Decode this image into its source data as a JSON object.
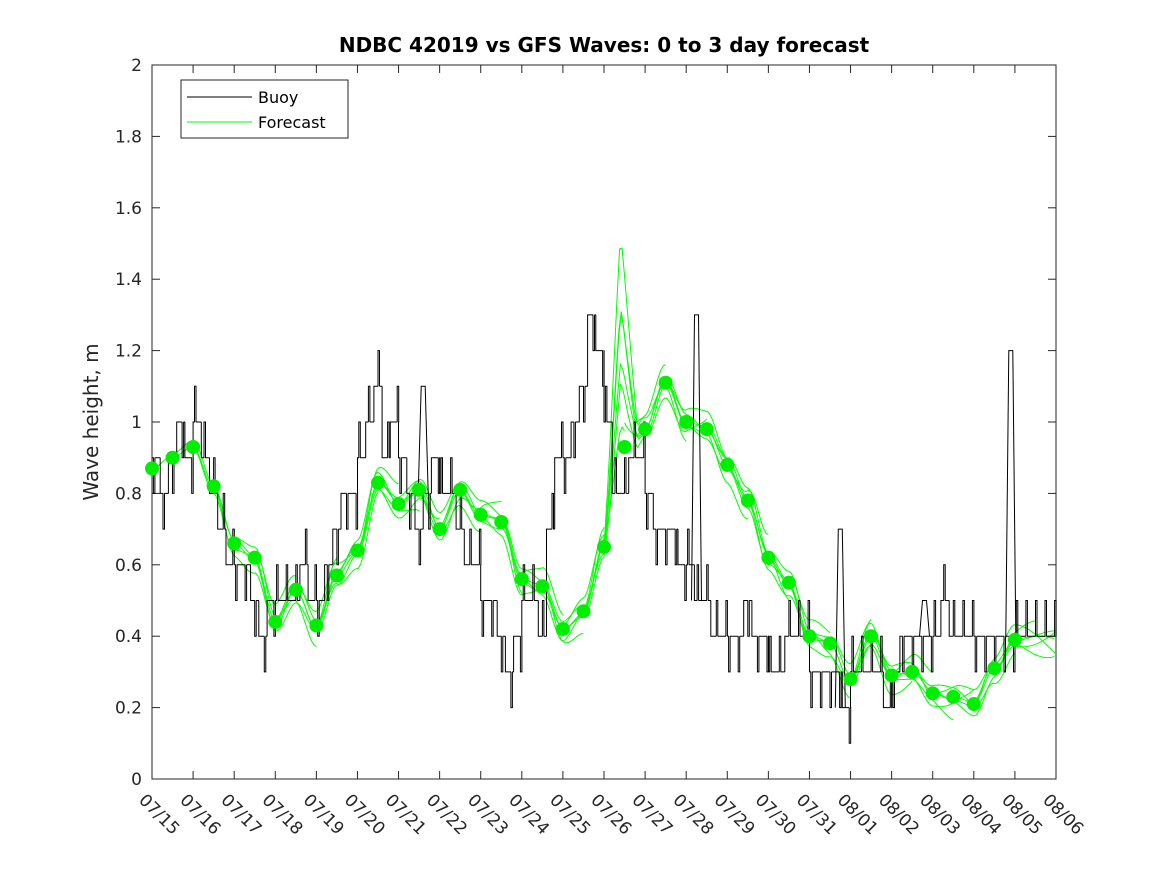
{
  "chart_data": {
    "type": "line",
    "title": "NDBC 42019 vs GFS Waves: 0 to 3 day forecast",
    "xlabel": "",
    "ylabel": "Wave height, m",
    "ylim": [
      0,
      2
    ],
    "yticks": [
      "0",
      "0.2",
      "0.4",
      "0.6",
      "0.8",
      "1",
      "1.2",
      "1.4",
      "1.6",
      "1.8",
      "2"
    ],
    "xlim": [
      "07/15",
      "08/06"
    ],
    "xticks": [
      "07/15",
      "07/16",
      "07/17",
      "07/18",
      "07/19",
      "07/20",
      "07/21",
      "07/22",
      "07/23",
      "07/24",
      "07/25",
      "07/26",
      "07/27",
      "07/28",
      "07/29",
      "07/30",
      "07/31",
      "08/01",
      "08/02",
      "08/03",
      "08/04",
      "08/05",
      "08/06"
    ],
    "grid": false,
    "legend": {
      "position": "top-left",
      "entries": [
        "Buoy",
        "Forecast"
      ]
    },
    "colors": {
      "buoy": "#000000",
      "forecast": "#00ff00",
      "dots": "#00ee00"
    },
    "buoy": {
      "name": "Buoy",
      "x_days": [
        0,
        0.2,
        0.4,
        0.6,
        0.8,
        1.0,
        1.2,
        1.4,
        1.6,
        1.8,
        2.0,
        2.2,
        2.4,
        2.6,
        2.8,
        3.0,
        3.2,
        3.4,
        3.6,
        3.8,
        4.0,
        4.2,
        4.4,
        4.6,
        4.8,
        5.0,
        5.2,
        5.4,
        5.6,
        5.8,
        6.0,
        6.2,
        6.4,
        6.6,
        6.8,
        7.0,
        7.2,
        7.4,
        7.6,
        7.8,
        8.0,
        8.2,
        8.4,
        8.6,
        8.8,
        9.0,
        9.2,
        9.4,
        9.6,
        9.8,
        10.0,
        10.2,
        10.4,
        10.6,
        10.8,
        11.0,
        11.2,
        11.4,
        11.6,
        11.8,
        12.0,
        12.2,
        12.4,
        12.6,
        12.8,
        13.0,
        13.2,
        13.4,
        13.6,
        13.8,
        14.0,
        14.2,
        14.4,
        14.6,
        14.8,
        15.0,
        15.2,
        15.4,
        15.6,
        15.8,
        16.0,
        16.2,
        16.4,
        16.6,
        16.8,
        17.0,
        17.2,
        17.4,
        17.6,
        17.8,
        18.0,
        18.2,
        18.4,
        18.6,
        18.8,
        19.0,
        19.2,
        19.4,
        19.6,
        19.8,
        20.0,
        20.2,
        20.4,
        20.6,
        20.8,
        21.0,
        21.2,
        21.4,
        21.6,
        21.8,
        22.0
      ],
      "values": [
        0.9,
        0.8,
        0.9,
        1.0,
        0.9,
        1.0,
        0.9,
        0.8,
        0.7,
        0.6,
        0.6,
        0.6,
        0.5,
        0.4,
        0.5,
        0.5,
        0.5,
        0.5,
        0.6,
        0.5,
        0.5,
        0.6,
        0.7,
        0.8,
        0.8,
        0.9,
        1.0,
        1.1,
        0.9,
        1.0,
        0.9,
        0.8,
        0.7,
        0.8,
        0.9,
        0.8,
        0.8,
        0.7,
        0.6,
        0.6,
        0.5,
        0.5,
        0.4,
        0.3,
        0.4,
        0.5,
        0.5,
        0.4,
        0.7,
        0.9,
        0.9,
        1.0,
        1.1,
        1.3,
        1.2,
        1.0,
        0.8,
        0.8,
        0.9,
        0.9,
        0.8,
        0.7,
        0.7,
        0.7,
        0.6,
        0.6,
        0.5,
        0.5,
        0.4,
        0.4,
        0.4,
        0.4,
        0.5,
        0.4,
        0.4,
        0.3,
        0.3,
        0.4,
        0.4,
        0.4,
        0.3,
        0.3,
        0.3,
        0.3,
        0.2,
        0.3,
        0.3,
        0.3,
        0.3,
        0.2,
        0.3,
        0.4,
        0.4,
        0.4,
        0.4,
        0.4,
        0.5,
        0.4,
        0.4,
        0.4,
        0.4,
        0.4,
        0.4,
        0.4,
        0.4,
        0.4,
        0.4,
        0.4,
        0.4,
        0.4,
        0.4
      ],
      "spikes": [
        {
          "x_days": 6.6,
          "value": 1.1
        },
        {
          "x_days": 13.25,
          "value": 1.3
        },
        {
          "x_days": 16.75,
          "value": 0.7
        },
        {
          "x_days": 18.8,
          "value": 0.5
        },
        {
          "x_days": 20.9,
          "value": 1.2
        }
      ]
    },
    "forecast_dots": {
      "name": "Forecast",
      "x_days": [
        0,
        0.5,
        1.0,
        1.5,
        2.0,
        2.5,
        3.0,
        3.5,
        4.0,
        4.5,
        5.0,
        5.5,
        6.0,
        6.5,
        7.0,
        7.5,
        8.0,
        8.5,
        9.0,
        9.5,
        10.0,
        10.5,
        11.0,
        11.5,
        12.0,
        12.5,
        13.0,
        13.5,
        14.0,
        14.5,
        15.0,
        15.5,
        16.0,
        16.5,
        17.0,
        17.5,
        18.0,
        18.5,
        19.0,
        19.5,
        20.0,
        20.5,
        21.0
      ],
      "values": [
        0.87,
        0.9,
        0.93,
        0.82,
        0.66,
        0.62,
        0.44,
        0.53,
        0.43,
        0.57,
        0.64,
        0.83,
        0.77,
        0.81,
        0.7,
        0.81,
        0.74,
        0.72,
        0.56,
        0.54,
        0.42,
        0.47,
        0.65,
        0.93,
        0.98,
        1.11,
        1.0,
        0.98,
        0.88,
        0.78,
        0.62,
        0.55,
        0.4,
        0.38,
        0.28,
        0.4,
        0.29,
        0.3,
        0.24,
        0.23,
        0.21,
        0.31,
        0.39
      ]
    }
  }
}
